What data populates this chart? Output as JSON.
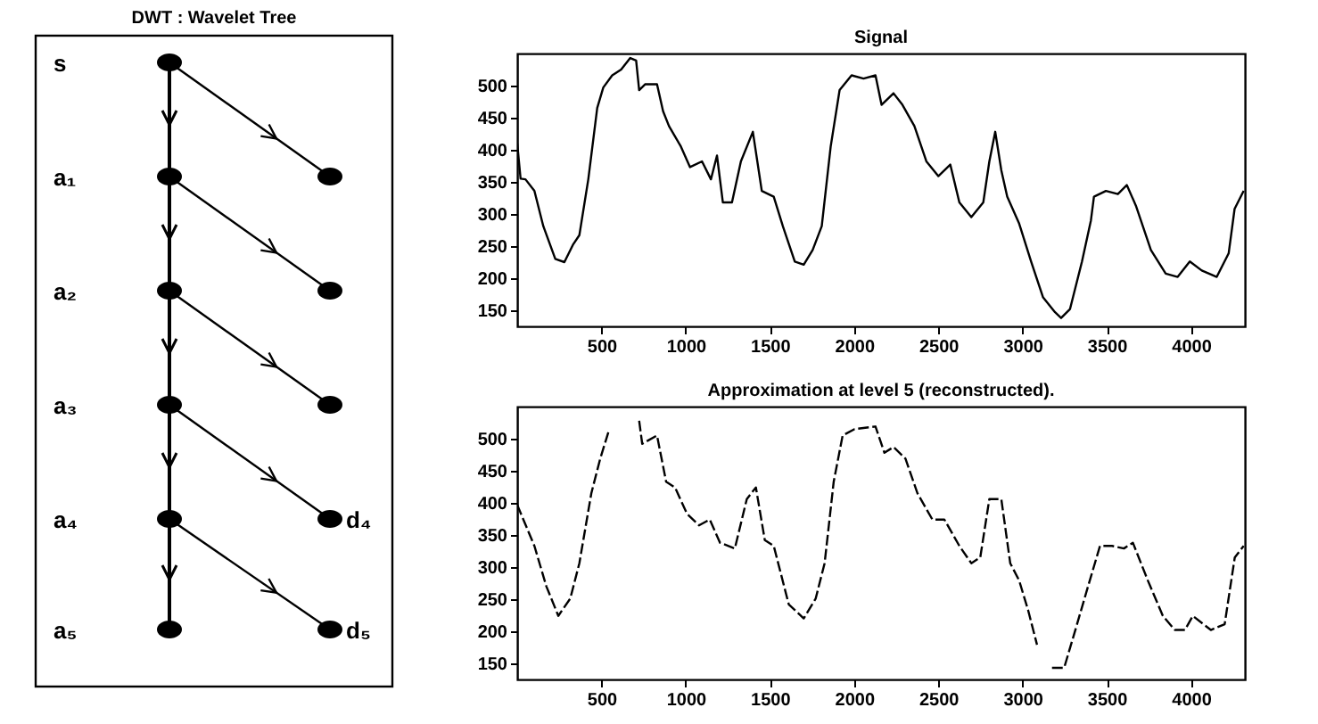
{
  "chart_data": [
    {
      "type": "other",
      "title": "DWT : Wavelet Tree",
      "annotations": [
        "s",
        "a₁",
        "a₂",
        "a₃",
        "a₄",
        "a₅",
        "d₄",
        "d₅"
      ]
    },
    {
      "type": "line",
      "title": "Signal",
      "line_style": "solid",
      "grid": false,
      "xlim": [
        0,
        4320
      ],
      "ylim": [
        125,
        550
      ],
      "xticks": [
        500,
        1000,
        1500,
        2000,
        2500,
        3000,
        3500,
        4000
      ],
      "yticks": [
        150,
        200,
        250,
        300,
        350,
        400,
        450,
        500
      ],
      "x": [
        0,
        20,
        49,
        102,
        155,
        226,
        280,
        333,
        369,
        422,
        475,
        511,
        564,
        617,
        671,
        706,
        724,
        759,
        830,
        866,
        901,
        972,
        1026,
        1097,
        1150,
        1186,
        1221,
        1275,
        1328,
        1399,
        1452,
        1523,
        1577,
        1648,
        1701,
        1754,
        1808,
        1861,
        1914,
        1985,
        2056,
        2127,
        2163,
        2234,
        2287,
        2358,
        2429,
        2500,
        2571,
        2625,
        2696,
        2767,
        2803,
        2838,
        2874,
        2909,
        2980,
        3051,
        3122,
        3193,
        3229,
        3282,
        3353,
        3406,
        3424,
        3495,
        3566,
        3619,
        3673,
        3762,
        3850,
        3921,
        3993,
        4064,
        4153,
        4224,
        4259,
        4313
      ],
      "series": [
        {
          "color": "#000000",
          "values": [
            410,
            355,
            354,
            336,
            281,
            230,
            225,
            253,
            267,
            354,
            465,
            497,
            516,
            525,
            543,
            539,
            493,
            502,
            502,
            460,
            437,
            405,
            373,
            382,
            354,
            391,
            318,
            318,
            382,
            428,
            336,
            327,
            281,
            226,
            221,
            244,
            281,
            405,
            493,
            516,
            511,
            516,
            470,
            488,
            470,
            437,
            382,
            359,
            377,
            318,
            295,
            318,
            382,
            428,
            368,
            327,
            285,
            226,
            170,
            147,
            138,
            152,
            226,
            290,
            327,
            336,
            331,
            345,
            313,
            244,
            207,
            202,
            226,
            212,
            202,
            239,
            308,
            336
          ]
        }
      ]
    },
    {
      "type": "line",
      "title": "Approximation at level 5 (reconstructed).",
      "line_style": "dashed",
      "grid": false,
      "xlim": [
        0,
        4320
      ],
      "ylim": [
        125,
        550
      ],
      "xticks": [
        500,
        1000,
        1500,
        2000,
        2500,
        3000,
        3500,
        4000
      ],
      "yticks": [
        150,
        200,
        250,
        300,
        350,
        400,
        450,
        500
      ],
      "x": [
        0,
        102,
        173,
        244,
        315,
        369,
        440,
        493,
        547,
        640,
        724,
        742,
        830,
        884,
        937,
        1008,
        1079,
        1143,
        1204,
        1292,
        1363,
        1417,
        1470,
        1523,
        1612,
        1701,
        1772,
        1825,
        1879,
        1932,
        2003,
        2127,
        2180,
        2234,
        2305,
        2376,
        2465,
        2536,
        2625,
        2696,
        2749,
        2803,
        2874,
        2927,
        2980,
        3033,
        3086,
        3130,
        3175,
        3247,
        3318,
        3389,
        3460,
        3531,
        3602,
        3655,
        3744,
        3833,
        3904,
        3964,
        4011,
        4118,
        4200,
        4260,
        4313
      ],
      "series": [
        {
          "color": "#000000",
          "values": [
            397,
            333,
            270,
            224,
            251,
            306,
            415,
            469,
            515,
            null,
            528,
            492,
            505,
            433,
            424,
            383,
            365,
            374,
            338,
            329,
            406,
            424,
            342,
            333,
            242,
            220,
            251,
            306,
            433,
            505,
            515,
            519,
            478,
            487,
            469,
            415,
            374,
            374,
            333,
            306,
            315,
            406,
            406,
            306,
            279,
            233,
            179,
            null,
            143,
            143,
            206,
            270,
            333,
            333,
            329,
            338,
            279,
            224,
            202,
            202,
            224,
            202,
            211,
            315,
            333
          ]
        }
      ]
    }
  ]
}
